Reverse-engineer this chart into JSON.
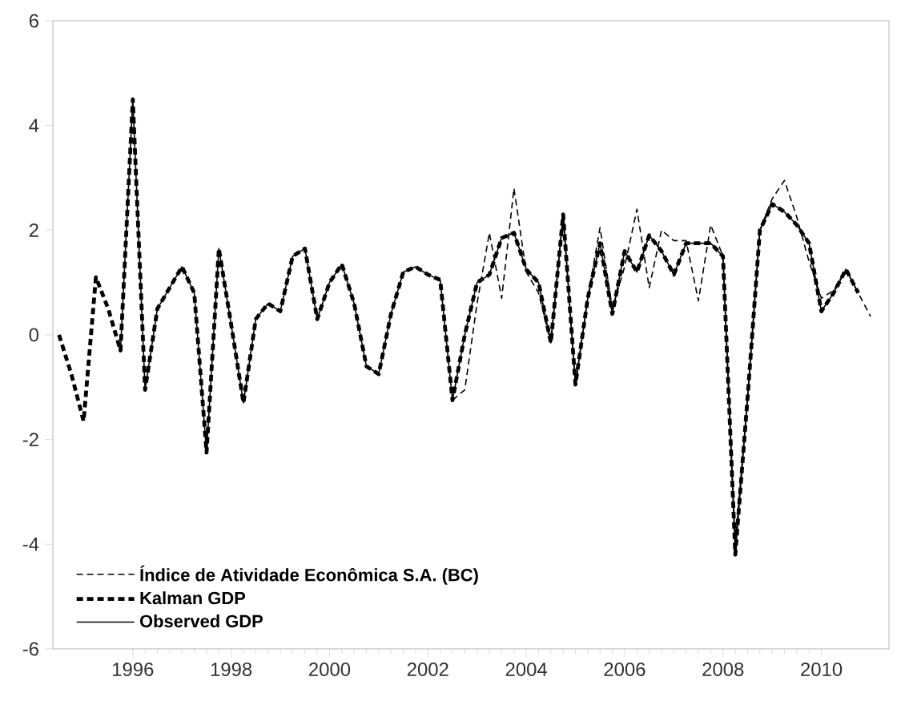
{
  "chart_data": {
    "type": "line",
    "xlim": [
      1994.375,
      2011.375
    ],
    "xticks": [
      1996,
      1998,
      2000,
      2002,
      2004,
      2006,
      2008,
      2010
    ],
    "ylim": [
      -6,
      6
    ],
    "yticks": [
      -6,
      -4,
      -2,
      0,
      2,
      4,
      6
    ],
    "grid": false,
    "legend": "bottom left",
    "series": [
      {
        "name": "Índice de Atividade Econômica S.A. (BC)",
        "color": "#000000",
        "line_style": "dashed",
        "x": [
          2002.5,
          2002.75,
          2003.0,
          2003.25,
          2003.5,
          2003.75,
          2004.0,
          2004.25,
          2004.5,
          2004.75,
          2005.0,
          2005.25,
          2005.5,
          2005.75,
          2006.0,
          2006.25,
          2006.5,
          2006.75,
          2007.0,
          2007.25,
          2007.5,
          2007.75,
          2008.0,
          2008.25,
          2008.5,
          2008.75,
          2009.0,
          2009.25,
          2009.5,
          2009.75,
          2010.0,
          2010.25,
          2010.5,
          2010.75,
          2011.0
        ],
        "values": [
          -1.25,
          -1.05,
          0.6,
          1.95,
          0.7,
          2.8,
          1.2,
          0.8,
          -0.15,
          2.3,
          -0.95,
          0.7,
          2.05,
          0.5,
          1.3,
          2.4,
          0.9,
          2.0,
          1.8,
          1.8,
          0.65,
          2.1,
          1.5,
          -4.0,
          -1.2,
          2.0,
          2.6,
          2.95,
          2.25,
          1.4,
          0.7,
          0.85,
          1.25,
          0.8,
          0.35
        ]
      },
      {
        "name": "Kalman GDP",
        "color": "#000000",
        "line_style": "dashed",
        "x": [
          1994.5,
          1994.75,
          1995.0,
          1995.25,
          1995.5,
          1995.75,
          1996.0,
          1996.25,
          1996.5,
          1996.75,
          1997.0,
          1997.25,
          1997.5,
          1997.75,
          1998.0,
          1998.25,
          1998.5,
          1998.75,
          1999.0,
          1999.25,
          1999.5,
          1999.75,
          2000.0,
          2000.25,
          2000.5,
          2000.75,
          2001.0,
          2001.25,
          2001.5,
          2001.75,
          2002.0,
          2002.25,
          2002.5,
          2002.75,
          2003.0,
          2003.25,
          2003.5,
          2003.75,
          2004.0,
          2004.25,
          2004.5,
          2004.75,
          2005.0,
          2005.25,
          2005.5,
          2005.75,
          2006.0,
          2006.25,
          2006.5,
          2006.75,
          2007.0,
          2007.25,
          2007.5,
          2007.75,
          2008.0,
          2008.25,
          2008.5,
          2008.75,
          2009.0,
          2009.25,
          2009.5,
          2009.75,
          2010.0,
          2010.25,
          2010.5,
          2010.75
        ],
        "values": [
          0,
          -0.75,
          -1.65,
          1.1,
          0.5,
          -0.3,
          4.5,
          -1.05,
          0.5,
          0.9,
          1.3,
          0.8,
          -2.25,
          1.65,
          0.2,
          -1.3,
          0.3,
          0.6,
          0.45,
          1.5,
          1.65,
          0.3,
          1.0,
          1.35,
          0.6,
          -0.6,
          -0.75,
          0.4,
          1.2,
          1.3,
          1.15,
          1.05,
          -1.25,
          0.0,
          1.0,
          1.15,
          1.85,
          1.95,
          1.25,
          1.0,
          -0.15,
          2.3,
          -0.95,
          0.7,
          1.75,
          0.4,
          1.6,
          1.2,
          1.9,
          1.6,
          1.15,
          1.75,
          1.75,
          1.75,
          1.5,
          -4.2,
          -1.2,
          2.0,
          2.5,
          2.35,
          2.1,
          1.75,
          0.45,
          0.8,
          1.25,
          0.8
        ]
      },
      {
        "name": "Observed GDP",
        "color": "#000000",
        "line_style": "solid",
        "x": [
          1995.75,
          1996.0,
          1996.25,
          1996.5,
          1996.75,
          1997.0,
          1997.25,
          1997.5,
          1997.75,
          1998.0,
          1998.25,
          1998.5,
          1998.75,
          1999.0,
          1999.25,
          1999.5,
          1999.75,
          2000.0,
          2000.25,
          2000.5,
          2000.75,
          2001.0,
          2001.25,
          2001.5,
          2001.75,
          2002.0,
          2002.25,
          2002.5,
          2002.75,
          2003.0,
          2003.25,
          2003.5,
          2003.75,
          2004.0,
          2004.25,
          2004.5,
          2004.75,
          2005.0,
          2005.25,
          2005.5,
          2005.75,
          2006.0,
          2006.25,
          2006.5,
          2006.75,
          2007.0,
          2007.25,
          2007.5,
          2007.75,
          2008.0,
          2008.25,
          2008.5,
          2008.75,
          2009.0,
          2009.25,
          2009.5,
          2009.75,
          2010.0,
          2010.25,
          2010.5,
          2010.75
        ],
        "values": [
          -0.3,
          4.5,
          -1.05,
          0.5,
          0.9,
          1.3,
          0.8,
          -2.25,
          1.65,
          0.2,
          -1.3,
          0.3,
          0.6,
          0.45,
          1.5,
          1.65,
          0.3,
          1.0,
          1.35,
          0.6,
          -0.6,
          -0.75,
          0.4,
          1.2,
          1.3,
          1.15,
          1.05,
          -1.25,
          0.0,
          1.0,
          1.15,
          1.85,
          1.95,
          1.25,
          1.0,
          -0.15,
          2.3,
          -0.95,
          0.7,
          1.75,
          0.4,
          1.6,
          1.2,
          1.9,
          1.6,
          1.15,
          1.75,
          1.75,
          1.75,
          1.5,
          -4.2,
          -1.2,
          2.0,
          2.5,
          2.35,
          2.1,
          1.75,
          0.45,
          0.8,
          1.25,
          0.8
        ]
      }
    ]
  }
}
